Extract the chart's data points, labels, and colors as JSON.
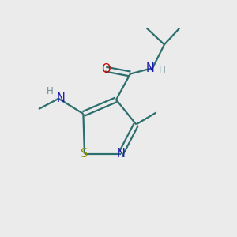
{
  "bg_color": "#ebebeb",
  "atom_colors": {
    "C": "#2d6e6e",
    "N": "#1c1cb0",
    "O": "#cc0000",
    "S": "#909000",
    "H": "#6a8f8f"
  },
  "bond_color": "#2d6e6e",
  "bond_lw": 1.6,
  "figsize": [
    3.0,
    3.0
  ],
  "dpi": 100,
  "xlim": [
    0,
    10
  ],
  "ylim": [
    0,
    10
  ]
}
